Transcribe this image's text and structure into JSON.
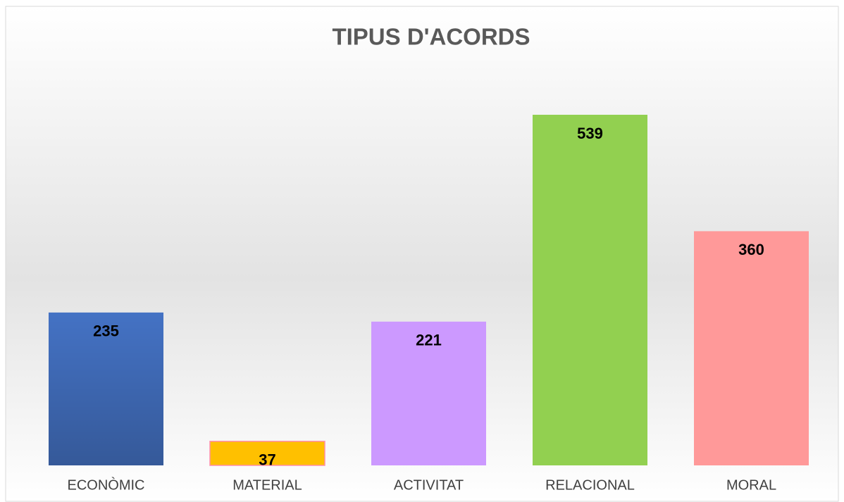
{
  "chart_data": {
    "type": "bar",
    "title": "TIPUS D'ACORDS",
    "categories": [
      "ECONÒMIC",
      "MATERIAL",
      "ACTIVITAT",
      "RELACIONAL",
      "MORAL"
    ],
    "values": [
      235,
      37,
      221,
      539,
      360
    ],
    "colors": [
      "#4472c4",
      "#ffc000",
      "#cc99ff",
      "#92d050",
      "#ff9999"
    ]
  }
}
